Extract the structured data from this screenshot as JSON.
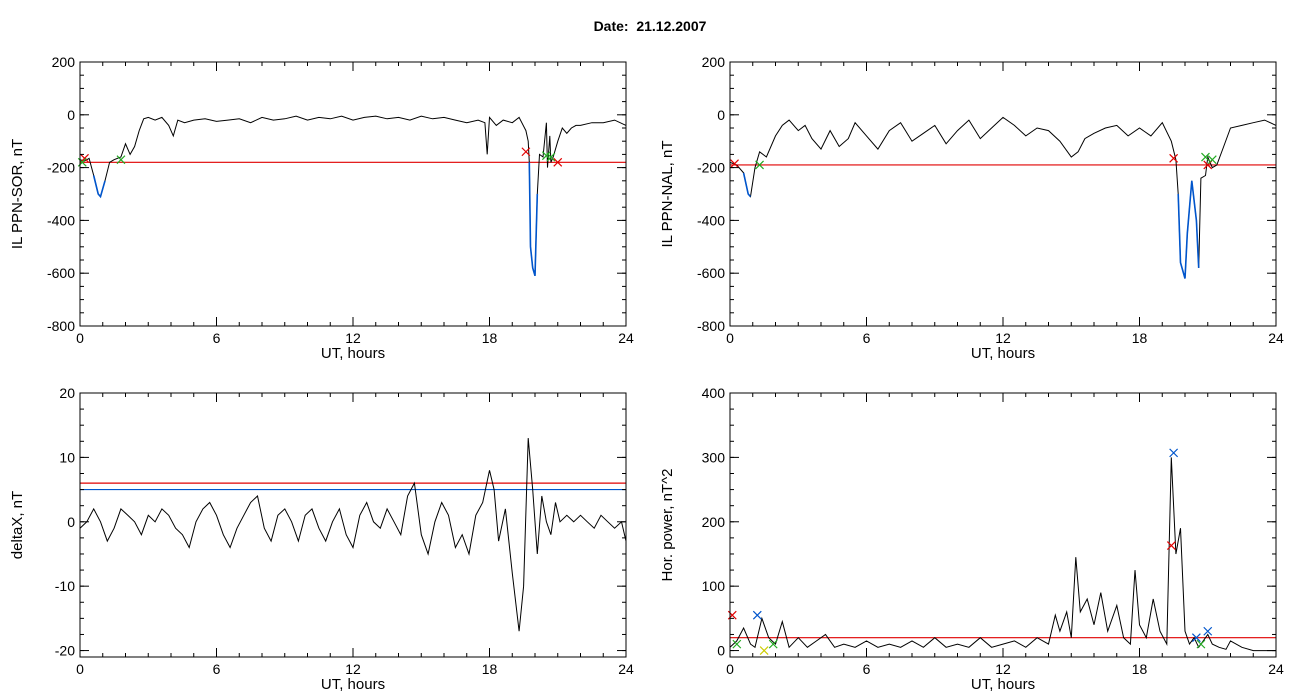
{
  "header": {
    "date_label": "Date:  21.12.2007"
  },
  "colors": {
    "trace": "#000000",
    "threshold": "#e00000",
    "blue_line": "#0055cc",
    "green_marker": "#22aa22",
    "yellow_marker": "#cccc00"
  },
  "chart_data": [
    {
      "type": "line",
      "ylabel": "IL PPN-SOR, nT",
      "xlabel": "UT, hours",
      "xlim": [
        0,
        24
      ],
      "ylim": [
        -800,
        200
      ],
      "xticks": [
        0,
        6,
        12,
        18,
        24
      ],
      "yticks": [
        -800,
        -600,
        -400,
        -200,
        0,
        200
      ],
      "threshold": -180,
      "series": [
        {
          "color": "#000000",
          "x": [
            0,
            0.2,
            0.4,
            0.6,
            0.8,
            0.9,
            1.1,
            1.3,
            1.5,
            1.8,
            2.0,
            2.2,
            2.4,
            2.6,
            2.8,
            3.0,
            3.3,
            3.6,
            3.9,
            4.1,
            4.3,
            4.6,
            5.0,
            5.5,
            6.0,
            6.5,
            7.0,
            7.5,
            8.0,
            8.5,
            9.0,
            9.5,
            10.0,
            10.5,
            11.0,
            11.5,
            12.0,
            12.5,
            13.0,
            13.5,
            14.0,
            14.5,
            15.0,
            15.5,
            16.0,
            16.5,
            17.0,
            17.5,
            17.8,
            17.9,
            18.0,
            18.3,
            18.6,
            19.0,
            19.3,
            19.6,
            19.7,
            19.75,
            19.8,
            19.9,
            20.0,
            20.1,
            20.2,
            20.35,
            20.5,
            20.55,
            20.65,
            20.7,
            20.8,
            21.0,
            21.2,
            21.4,
            21.6,
            21.8,
            22.0,
            22.5,
            23.0,
            23.5,
            24.0
          ],
          "y": [
            -170,
            -175,
            -165,
            -230,
            -300,
            -310,
            -250,
            -180,
            -170,
            -160,
            -110,
            -150,
            -120,
            -60,
            -15,
            -10,
            -20,
            -10,
            -40,
            -80,
            -20,
            -30,
            -20,
            -15,
            -25,
            -20,
            -15,
            -30,
            -10,
            -20,
            -15,
            -5,
            -20,
            -10,
            -15,
            -5,
            -20,
            -10,
            -5,
            -15,
            -10,
            -20,
            -5,
            -15,
            -10,
            -20,
            -30,
            -20,
            -30,
            -150,
            -10,
            -40,
            -20,
            -30,
            -10,
            -60,
            -100,
            -180,
            -500,
            -580,
            -610,
            -300,
            -150,
            -160,
            -30,
            -200,
            -80,
            -180,
            -160,
            -100,
            -50,
            -70,
            -50,
            -40,
            -40,
            -30,
            -30,
            -20,
            -40
          ]
        },
        {
          "color": "#0055cc",
          "x": [
            0.6,
            0.8,
            0.9,
            1.1,
            19.75,
            19.8,
            19.9,
            20.0,
            20.1
          ],
          "y": [
            -230,
            -300,
            -310,
            -250,
            -180,
            -500,
            -580,
            -610,
            -300
          ]
        }
      ],
      "markers": [
        {
          "x": 0.2,
          "y": -165,
          "color": "#e00000"
        },
        {
          "x": 19.6,
          "y": -140,
          "color": "#e00000"
        },
        {
          "x": 21.0,
          "y": -180,
          "color": "#e00000"
        },
        {
          "x": 0.1,
          "y": -180,
          "color": "#22aa22"
        },
        {
          "x": 1.8,
          "y": -170,
          "color": "#22aa22"
        },
        {
          "x": 20.5,
          "y": -155,
          "color": "#22aa22"
        },
        {
          "x": 20.7,
          "y": -160,
          "color": "#22aa22"
        }
      ]
    },
    {
      "type": "line",
      "ylabel": "IL PPN-NAL, nT",
      "xlabel": "UT, hours",
      "xlim": [
        0,
        24
      ],
      "ylim": [
        -800,
        200
      ],
      "xticks": [
        0,
        6,
        12,
        18,
        24
      ],
      "yticks": [
        -800,
        -600,
        -400,
        -200,
        0,
        200
      ],
      "threshold": -190,
      "series": [
        {
          "color": "#000000",
          "x": [
            0,
            0.3,
            0.6,
            0.8,
            0.9,
            1.1,
            1.3,
            1.6,
            2.0,
            2.3,
            2.6,
            3.0,
            3.3,
            3.6,
            4.0,
            4.4,
            4.8,
            5.2,
            5.5,
            6.0,
            6.5,
            7.0,
            7.5,
            8.0,
            8.5,
            9.0,
            9.5,
            10.0,
            10.5,
            11.0,
            11.5,
            12.0,
            12.5,
            13.0,
            13.5,
            14.0,
            14.5,
            15.0,
            15.3,
            15.6,
            16.0,
            16.5,
            17.0,
            17.5,
            18.0,
            18.5,
            19.0,
            19.4,
            19.6,
            19.7,
            19.8,
            20.0,
            20.1,
            20.3,
            20.5,
            20.6,
            20.7,
            20.9,
            21.0,
            21.2,
            21.4,
            21.7,
            22.0,
            22.5,
            23.0,
            23.5,
            24.0
          ],
          "y": [
            -180,
            -190,
            -220,
            -300,
            -310,
            -200,
            -140,
            -160,
            -80,
            -40,
            -20,
            -60,
            -40,
            -90,
            -130,
            -60,
            -120,
            -90,
            -30,
            -80,
            -130,
            -60,
            -30,
            -100,
            -70,
            -40,
            -110,
            -60,
            -20,
            -90,
            -50,
            -10,
            -40,
            -80,
            -50,
            -60,
            -100,
            -160,
            -140,
            -90,
            -70,
            -50,
            -40,
            -80,
            -50,
            -80,
            -30,
            -100,
            -170,
            -300,
            -560,
            -620,
            -450,
            -250,
            -400,
            -580,
            -240,
            -230,
            -160,
            -200,
            -190,
            -120,
            -50,
            -40,
            -30,
            -20,
            -40
          ]
        },
        {
          "color": "#0055cc",
          "x": [
            0.6,
            0.8,
            0.9,
            19.7,
            19.8,
            20.0,
            20.1,
            20.3,
            20.5,
            20.6
          ],
          "y": [
            -220,
            -300,
            -310,
            -300,
            -560,
            -620,
            -450,
            -250,
            -400,
            -580
          ]
        }
      ],
      "markers": [
        {
          "x": 0.2,
          "y": -185,
          "color": "#e00000"
        },
        {
          "x": 19.5,
          "y": -165,
          "color": "#e00000"
        },
        {
          "x": 21.0,
          "y": -190,
          "color": "#e00000"
        },
        {
          "x": 1.3,
          "y": -190,
          "color": "#22aa22"
        },
        {
          "x": 20.9,
          "y": -160,
          "color": "#22aa22"
        },
        {
          "x": 21.2,
          "y": -170,
          "color": "#22aa22"
        }
      ]
    },
    {
      "type": "line",
      "ylabel": "deltaX, nT",
      "xlabel": "UT, hours",
      "xlim": [
        0,
        24
      ],
      "ylim": [
        -21,
        20
      ],
      "xticks": [
        0,
        6,
        12,
        18,
        24
      ],
      "yticks": [
        -20,
        -10,
        0,
        10,
        20
      ],
      "threshold": 6,
      "threshold2": 5,
      "series": [
        {
          "color": "#000000",
          "x": [
            0,
            0.3,
            0.6,
            0.9,
            1.2,
            1.5,
            1.8,
            2.1,
            2.4,
            2.7,
            3.0,
            3.3,
            3.6,
            3.9,
            4.2,
            4.5,
            4.8,
            5.1,
            5.4,
            5.7,
            6.0,
            6.3,
            6.6,
            6.9,
            7.2,
            7.5,
            7.8,
            8.1,
            8.4,
            8.7,
            9.0,
            9.3,
            9.6,
            9.9,
            10.2,
            10.5,
            10.8,
            11.1,
            11.4,
            11.7,
            12.0,
            12.3,
            12.6,
            12.9,
            13.2,
            13.5,
            13.8,
            14.1,
            14.4,
            14.7,
            15.0,
            15.3,
            15.6,
            15.9,
            16.2,
            16.5,
            16.8,
            17.1,
            17.4,
            17.7,
            18.0,
            18.2,
            18.4,
            18.7,
            19.0,
            19.3,
            19.5,
            19.7,
            19.9,
            20.1,
            20.3,
            20.5,
            20.7,
            20.9,
            21.1,
            21.4,
            21.7,
            22.0,
            22.3,
            22.6,
            22.9,
            23.2,
            23.5,
            23.8,
            24.0
          ],
          "y": [
            -1,
            0,
            2,
            0,
            -3,
            -1,
            2,
            1,
            0,
            -2,
            1,
            0,
            2,
            1,
            -1,
            -2,
            -4,
            0,
            2,
            3,
            1,
            -2,
            -4,
            -1,
            1,
            3,
            4,
            -1,
            -3,
            1,
            2,
            0,
            -3,
            1,
            2,
            -1,
            -3,
            0,
            2,
            -2,
            -4,
            1,
            3,
            0,
            -1,
            2,
            0,
            -2,
            4,
            6,
            -2,
            -5,
            0,
            3,
            1,
            -4,
            -2,
            -5,
            1,
            3,
            8,
            5,
            -3,
            2,
            -8,
            -17,
            -10,
            13,
            5,
            -5,
            4,
            0,
            -2,
            3,
            0,
            1,
            0,
            1,
            0,
            -1,
            1,
            0,
            -1,
            0,
            -3
          ]
        }
      ],
      "markers": []
    },
    {
      "type": "line",
      "ylabel": "Hor. power, nT^2",
      "xlabel": "UT, hours",
      "xlim": [
        0,
        24
      ],
      "ylim": [
        -10,
        400
      ],
      "xticks": [
        0,
        6,
        12,
        18,
        24
      ],
      "yticks": [
        0,
        100,
        200,
        300,
        400
      ],
      "threshold": 20,
      "series": [
        {
          "color": "#000000",
          "x": [
            0,
            0.3,
            0.6,
            0.9,
            1.1,
            1.4,
            1.7,
            2.0,
            2.3,
            2.6,
            3.0,
            3.4,
            3.8,
            4.2,
            4.6,
            5.0,
            5.5,
            6.0,
            6.5,
            7.0,
            7.5,
            8.0,
            8.5,
            9.0,
            9.5,
            10.0,
            10.5,
            11.0,
            11.5,
            12.0,
            12.5,
            13.0,
            13.5,
            14.0,
            14.3,
            14.5,
            14.8,
            15.0,
            15.2,
            15.4,
            15.7,
            16.0,
            16.3,
            16.6,
            17.0,
            17.3,
            17.6,
            17.8,
            18.0,
            18.3,
            18.6,
            18.9,
            19.2,
            19.4,
            19.6,
            19.8,
            20.0,
            20.2,
            20.4,
            20.6,
            20.8,
            21.0,
            21.2,
            21.5,
            21.8,
            22.0,
            22.5,
            23.0,
            23.5,
            24.0
          ],
          "y": [
            5,
            15,
            35,
            10,
            5,
            50,
            20,
            10,
            45,
            5,
            20,
            5,
            15,
            25,
            5,
            10,
            5,
            15,
            5,
            10,
            5,
            15,
            5,
            20,
            5,
            10,
            5,
            20,
            5,
            10,
            15,
            5,
            20,
            10,
            55,
            30,
            60,
            20,
            145,
            60,
            80,
            40,
            90,
            30,
            70,
            20,
            10,
            125,
            40,
            20,
            80,
            30,
            10,
            300,
            150,
            190,
            30,
            10,
            20,
            5,
            15,
            25,
            10,
            5,
            2,
            15,
            5,
            0,
            0,
            0
          ]
        }
      ],
      "markers": [
        {
          "x": 1.2,
          "y": 55,
          "color": "#0055cc"
        },
        {
          "x": 19.5,
          "y": 307,
          "color": "#0055cc"
        },
        {
          "x": 20.5,
          "y": 20,
          "color": "#0055cc"
        },
        {
          "x": 21.0,
          "y": 30,
          "color": "#0055cc"
        },
        {
          "x": 19.4,
          "y": 163,
          "color": "#e00000"
        },
        {
          "x": 0.1,
          "y": 55,
          "color": "#e00000"
        },
        {
          "x": 0.3,
          "y": 10,
          "color": "#22aa22"
        },
        {
          "x": 1.9,
          "y": 10,
          "color": "#22aa22"
        },
        {
          "x": 20.7,
          "y": 10,
          "color": "#22aa22"
        },
        {
          "x": 1.5,
          "y": 0,
          "color": "#cccc00"
        }
      ]
    }
  ]
}
